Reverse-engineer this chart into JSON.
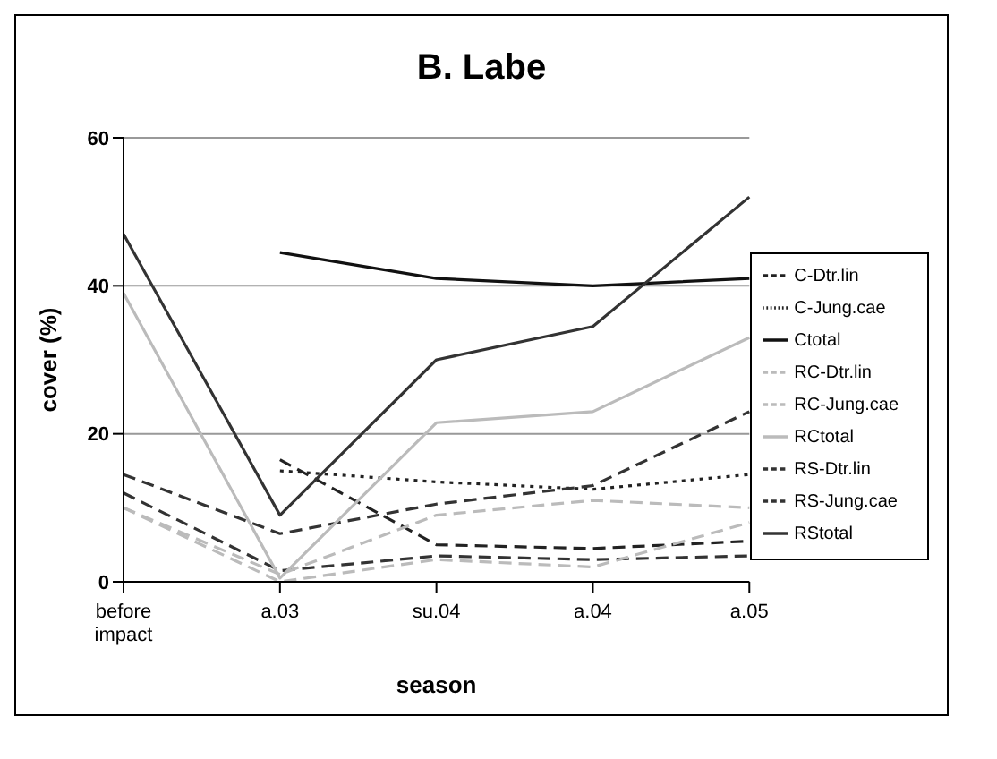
{
  "chart_data": {
    "type": "line",
    "title": "B. Labe",
    "xlabel": "season",
    "ylabel": "cover (%)",
    "categories": [
      "before impact",
      "a.03",
      "su.04",
      "a.04",
      "a.05"
    ],
    "series": [
      {
        "name": "C-Jung.cae",
        "color": "#222222",
        "line_style": "dotted",
        "values": [
          null,
          15,
          13.5,
          12.5,
          14.5
        ]
      },
      {
        "name": "Ctotal",
        "color": "#111111",
        "line_style": "solid",
        "values": [
          null,
          44.5,
          41,
          40,
          41
        ]
      },
      {
        "name": "C-Dtr.lin",
        "color": "#222222",
        "line_style": "dashed",
        "values": [
          null,
          16.5,
          5,
          4.5,
          5.5
        ]
      },
      {
        "name": "RS-Jung.cae",
        "color": "#333333",
        "line_style": "dashed",
        "values": [
          14.5,
          6.5,
          10.5,
          13,
          23
        ]
      },
      {
        "name": "RStotal",
        "color": "#333333",
        "line_style": "solid",
        "values": [
          47,
          9,
          30,
          34.5,
          52
        ]
      },
      {
        "name": "RS-Dtr.lin",
        "color": "#333333",
        "line_style": "dashed",
        "values": [
          12,
          1.5,
          3.5,
          3,
          3.5
        ]
      },
      {
        "name": "RC-Jung.cae",
        "color": "#bbbbbb",
        "line_style": "dashed",
        "values": [
          10,
          1,
          9,
          11,
          10
        ]
      },
      {
        "name": "RCtotal",
        "color": "#bbbbbb",
        "line_style": "solid",
        "values": [
          39,
          0.5,
          21.5,
          23,
          33
        ]
      },
      {
        "name": "RC-Dtr.lin",
        "color": "#bbbbbb",
        "line_style": "dashed",
        "values": [
          10,
          0,
          3,
          2,
          8
        ]
      }
    ],
    "ylim": [
      0,
      60
    ],
    "yticks": [
      0,
      20,
      40,
      60
    ],
    "grid": "y",
    "legend": "right",
    "marker": "none"
  }
}
